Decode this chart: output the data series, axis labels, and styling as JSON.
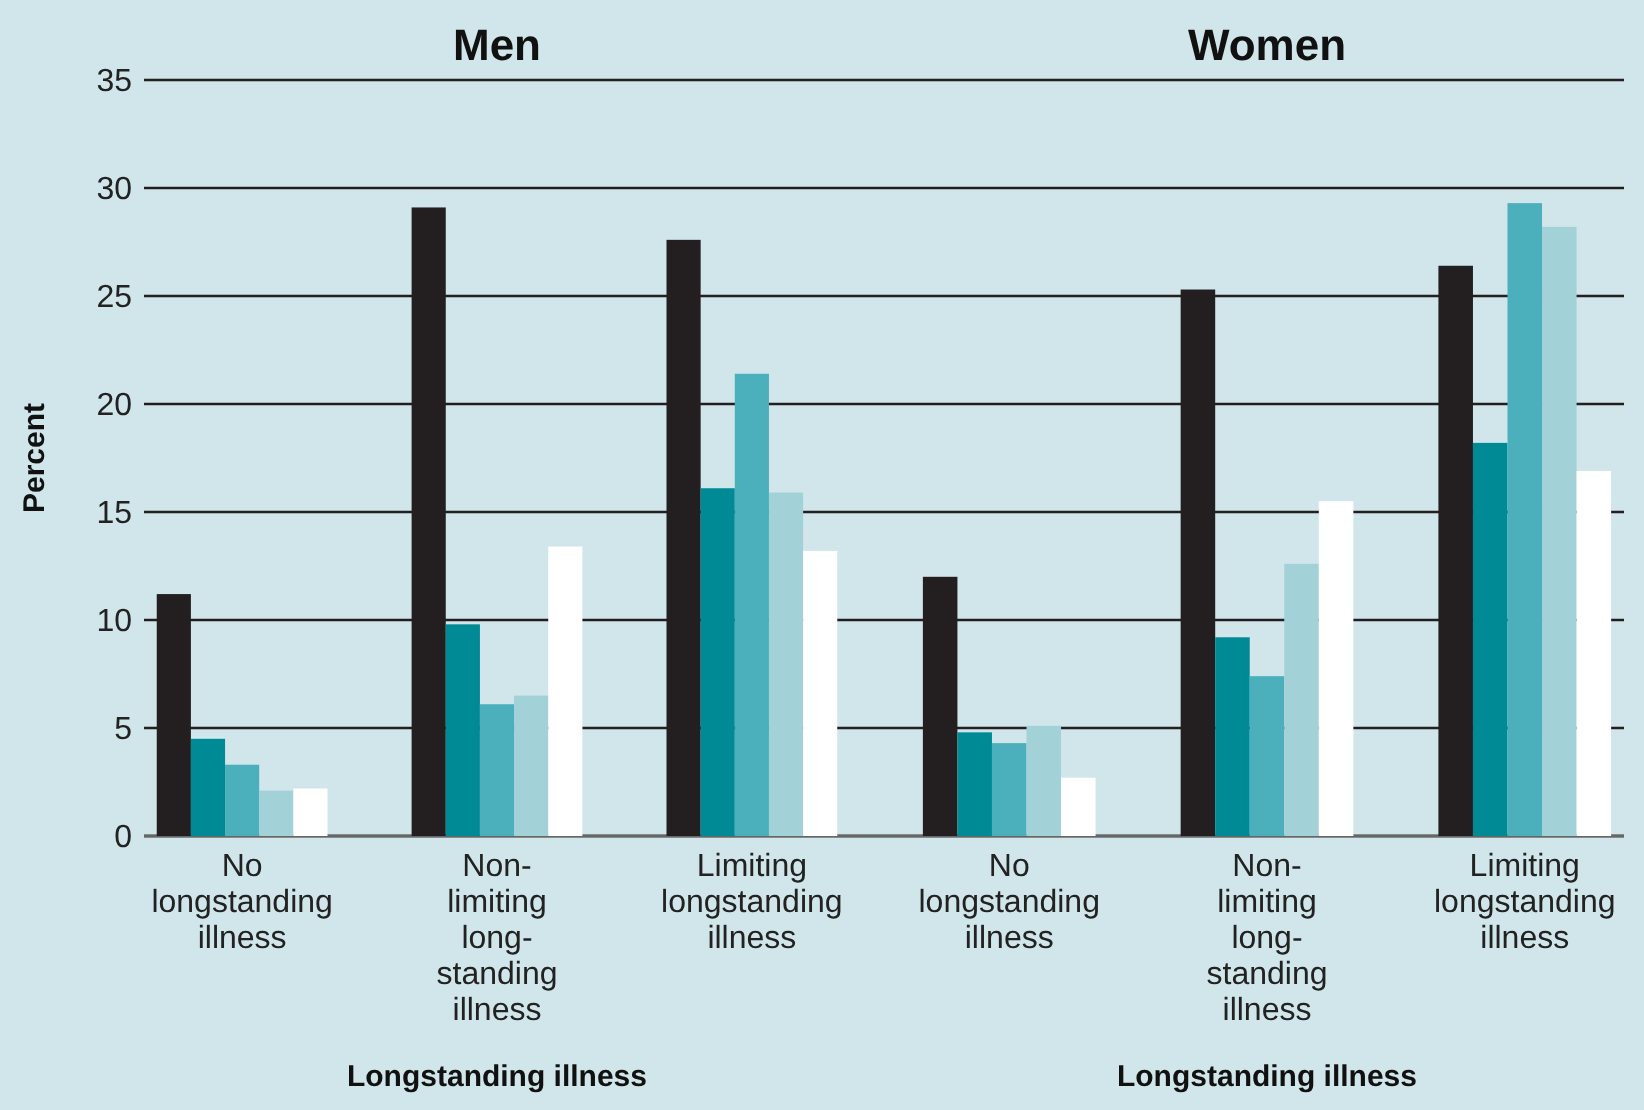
{
  "chart_data": [
    {
      "type": "bar",
      "title": "Men",
      "xlabel": "Longstanding illness",
      "ylabel": "Percent",
      "categories": [
        "No\nlongstanding\nillness",
        "Non-\nlimiting\nlong-\nstanding\nillness",
        "Limiting\nlongstanding\nillness"
      ],
      "series": [
        {
          "color": "#231f20",
          "values": [
            11.2,
            29.1,
            27.6
          ]
        },
        {
          "color": "#008a96",
          "values": [
            4.5,
            9.8,
            16.1
          ]
        },
        {
          "color": "#4bb0bc",
          "values": [
            3.3,
            6.1,
            21.4
          ]
        },
        {
          "color": "#a3d1d8",
          "values": [
            2.1,
            6.5,
            15.9
          ]
        },
        {
          "color": "#ffffff",
          "values": [
            2.2,
            13.4,
            13.2
          ]
        }
      ],
      "ylim": [
        0,
        35
      ],
      "yticks": [
        0,
        5,
        10,
        15,
        20,
        25,
        30,
        35
      ],
      "grid": "y"
    },
    {
      "type": "bar",
      "title": "Women",
      "xlabel": "Longstanding illness",
      "categories": [
        "No\nlongstanding\nillness",
        "Non-\nlimiting\nlong-\nstanding\nillness",
        "Limiting\nlongstanding\nillness"
      ],
      "series": [
        {
          "color": "#231f20",
          "values": [
            12.0,
            25.3,
            26.4
          ]
        },
        {
          "color": "#008a96",
          "values": [
            4.8,
            9.2,
            18.2
          ]
        },
        {
          "color": "#4bb0bc",
          "values": [
            4.3,
            7.4,
            29.3
          ]
        },
        {
          "color": "#a3d1d8",
          "values": [
            5.1,
            12.6,
            28.2
          ]
        },
        {
          "color": "#ffffff",
          "values": [
            2.7,
            15.5,
            16.9
          ]
        }
      ],
      "ylim": [
        0,
        35
      ],
      "yticks": [
        0,
        5,
        10,
        15,
        20,
        25,
        30,
        35
      ],
      "grid": "y",
      "tick_labels": "x"
    }
  ]
}
